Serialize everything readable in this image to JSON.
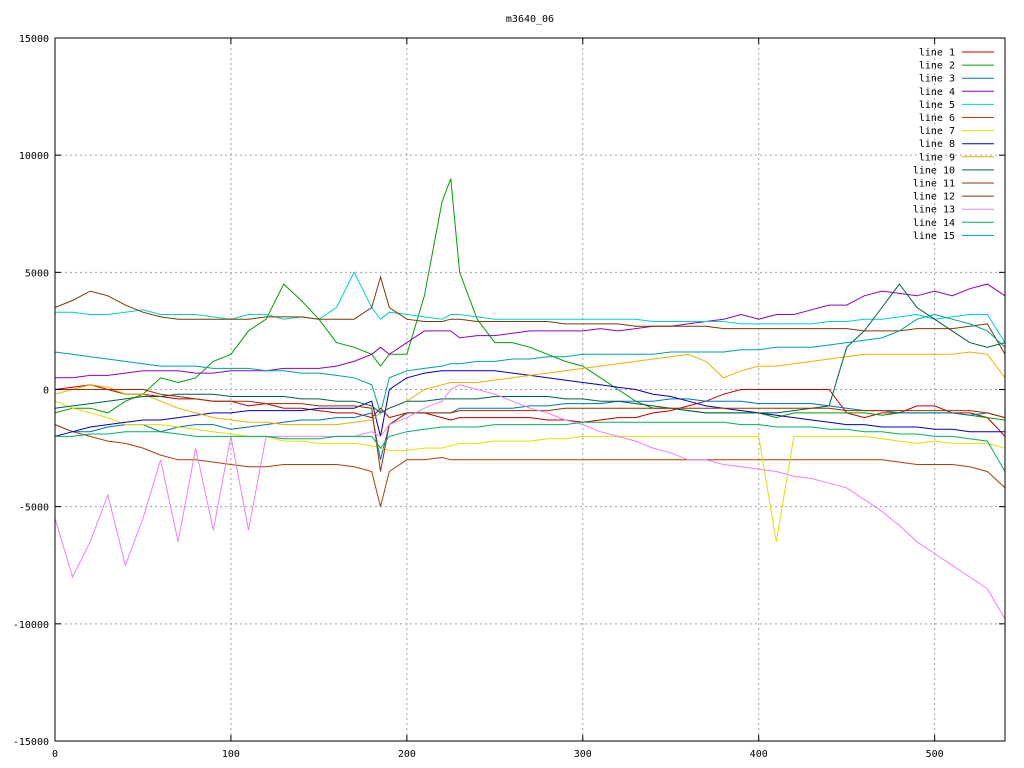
{
  "chart_data": {
    "type": "line",
    "title": "m3640_06",
    "xlabel": "",
    "ylabel": "",
    "xlim": [
      0,
      540
    ],
    "ylim": [
      -15000,
      15000
    ],
    "x_ticks": [
      0,
      100,
      200,
      300,
      400,
      500
    ],
    "y_ticks": [
      -15000,
      -10000,
      -5000,
      0,
      5000,
      10000,
      15000
    ],
    "grid": true,
    "legend_position": "top-right",
    "x": [
      0,
      10,
      20,
      30,
      40,
      50,
      60,
      70,
      80,
      90,
      100,
      110,
      120,
      130,
      140,
      150,
      160,
      170,
      180,
      185,
      190,
      200,
      210,
      220,
      225,
      230,
      240,
      250,
      260,
      270,
      280,
      290,
      300,
      310,
      320,
      330,
      340,
      350,
      360,
      370,
      380,
      390,
      400,
      410,
      420,
      430,
      440,
      450,
      460,
      470,
      480,
      490,
      500,
      510,
      520,
      530,
      540
    ],
    "series": [
      {
        "name": "line 1",
        "color": "#c00000",
        "values": [
          0,
          100,
          200,
          0,
          -200,
          -200,
          -300,
          -400,
          -400,
          -500,
          -500,
          -700,
          -600,
          -800,
          -800,
          -900,
          -1000,
          -1000,
          -1200,
          -800,
          -1200,
          -1000,
          -1000,
          -1200,
          -1300,
          -1200,
          -1200,
          -1200,
          -1200,
          -1200,
          -1300,
          -1300,
          -1400,
          -1300,
          -1200,
          -1200,
          -1000,
          -900,
          -700,
          -500,
          -200,
          0,
          0,
          0,
          0,
          0,
          0,
          -1000,
          -1200,
          -1000,
          -1000,
          -700,
          -700,
          -1000,
          -1000,
          -1200,
          -2000
        ]
      },
      {
        "name": "line 2",
        "color": "#00a000",
        "values": [
          -1000,
          -800,
          -800,
          -1000,
          -500,
          -200,
          500,
          300,
          500,
          1200,
          1500,
          2500,
          3000,
          4500,
          3800,
          3000,
          2000,
          1800,
          1500,
          1000,
          1500,
          1500,
          4000,
          8000,
          9000,
          5000,
          3000,
          2000,
          2000,
          1800,
          1500,
          1200,
          1000,
          500,
          0,
          -500,
          -800,
          -800,
          -900,
          -1000,
          -1000,
          -1000,
          -1000,
          -1200,
          -1000,
          -1000,
          -1000,
          -1000,
          -1000,
          -1100,
          -1000,
          -1000,
          -1000,
          -1000,
          -1100,
          -1200,
          -1300
        ]
      },
      {
        "name": "line 3",
        "color": "#0070c0",
        "values": [
          -1500,
          -1800,
          -1800,
          -1600,
          -1500,
          -1500,
          -1800,
          -1600,
          -1500,
          -1500,
          -1700,
          -1600,
          -1500,
          -1400,
          -1300,
          -1300,
          -1200,
          -1200,
          -1000,
          -3000,
          -1500,
          -1000,
          -1000,
          -1000,
          -1000,
          -800,
          -800,
          -800,
          -800,
          -700,
          -700,
          -600,
          -600,
          -600,
          -500,
          -500,
          -500,
          -400,
          -400,
          -500,
          -500,
          -500,
          -600,
          -600,
          -600,
          -600,
          -700,
          -800,
          -900,
          -900,
          -1000,
          -1000,
          -1000,
          -1000,
          -1100,
          -1000,
          -1200
        ]
      },
      {
        "name": "line 4",
        "color": "#9000c0",
        "values": [
          500,
          500,
          600,
          600,
          700,
          800,
          800,
          800,
          700,
          700,
          800,
          800,
          800,
          900,
          900,
          900,
          1000,
          1200,
          1500,
          1800,
          1500,
          2000,
          2500,
          2500,
          2500,
          2200,
          2300,
          2300,
          2400,
          2500,
          2500,
          2500,
          2500,
          2600,
          2500,
          2600,
          2700,
          2700,
          2800,
          2900,
          3000,
          3200,
          3000,
          3200,
          3200,
          3400,
          3600,
          3600,
          4000,
          4200,
          4100,
          4000,
          4200,
          4000,
          4300,
          4500,
          4000
        ]
      },
      {
        "name": "line 5",
        "color": "#00d0d0",
        "values": [
          3300,
          3300,
          3200,
          3200,
          3300,
          3400,
          3200,
          3200,
          3200,
          3100,
          3000,
          3200,
          3200,
          3000,
          3100,
          3000,
          3500,
          5000,
          3500,
          3000,
          3300,
          3200,
          3100,
          3000,
          3200,
          3200,
          3100,
          3000,
          3000,
          3000,
          3000,
          3000,
          3000,
          3000,
          3000,
          3000,
          2900,
          2900,
          2900,
          2900,
          2900,
          2800,
          2800,
          2800,
          2800,
          2800,
          2900,
          2900,
          3000,
          3000,
          3100,
          3200,
          3000,
          3100,
          3200,
          3200,
          2000
        ]
      },
      {
        "name": "line 6",
        "color": "#b04000",
        "values": [
          -1500,
          -1800,
          -2000,
          -2200,
          -2300,
          -2500,
          -2800,
          -3000,
          -3000,
          -3100,
          -3200,
          -3300,
          -3300,
          -3200,
          -3200,
          -3200,
          -3200,
          -3300,
          -3500,
          -5000,
          -3500,
          -3000,
          -3000,
          -2900,
          -3000,
          -3000,
          -3000,
          -3000,
          -3000,
          -3000,
          -3000,
          -3000,
          -3000,
          -3000,
          -3000,
          -3000,
          -3000,
          -3000,
          -3000,
          -3000,
          -3000,
          -3000,
          -3000,
          -3000,
          -3000,
          -3000,
          -3000,
          -3000,
          -3000,
          -3000,
          -3100,
          -3200,
          -3200,
          -3200,
          -3300,
          -3500,
          -4200
        ]
      },
      {
        "name": "line 7",
        "color": "#e0e000",
        "values": [
          -500,
          -800,
          -1000,
          -1200,
          -1500,
          -1500,
          -1500,
          -1600,
          -1700,
          -1800,
          -1900,
          -2000,
          -2000,
          -2200,
          -2200,
          -2300,
          -2300,
          -2300,
          -2400,
          -2500,
          -2600,
          -2600,
          -2500,
          -2500,
          -2400,
          -2300,
          -2300,
          -2200,
          -2200,
          -2200,
          -2100,
          -2100,
          -2000,
          -2000,
          -2000,
          -2000,
          -2000,
          -2000,
          -2000,
          -2000,
          -2000,
          -2000,
          -2000,
          -6500,
          -2000,
          -2000,
          -2000,
          -2000,
          -2000,
          -2100,
          -2200,
          -2300,
          -2200,
          -2300,
          -2300,
          -2300,
          -2500
        ]
      },
      {
        "name": "line 8",
        "color": "#0000c0",
        "values": [
          -2000,
          -1800,
          -1600,
          -1500,
          -1400,
          -1300,
          -1300,
          -1200,
          -1100,
          -1000,
          -1000,
          -900,
          -900,
          -900,
          -900,
          -800,
          -800,
          -800,
          -500,
          -2000,
          0,
          500,
          700,
          800,
          800,
          800,
          800,
          800,
          700,
          600,
          500,
          400,
          300,
          200,
          100,
          0,
          -200,
          -300,
          -500,
          -700,
          -800,
          -900,
          -1000,
          -1100,
          -1200,
          -1300,
          -1400,
          -1500,
          -1500,
          -1600,
          -1600,
          -1600,
          -1700,
          -1700,
          -1800,
          -1800,
          -1800
        ]
      },
      {
        "name": "line 9",
        "color": "#f0b000",
        "values": [
          -200,
          0,
          200,
          100,
          -200,
          -200,
          -500,
          -800,
          -1000,
          -1200,
          -1300,
          -1400,
          -1400,
          -1500,
          -1500,
          -1500,
          -1500,
          -1400,
          -1300,
          -1000,
          -800,
          -500,
          0,
          200,
          300,
          300,
          300,
          400,
          500,
          600,
          700,
          800,
          900,
          1000,
          1100,
          1200,
          1300,
          1400,
          1500,
          1200,
          500,
          800,
          1000,
          1000,
          1100,
          1200,
          1300,
          1400,
          1500,
          1500,
          1500,
          1500,
          1500,
          1500,
          1600,
          1500,
          500
        ]
      },
      {
        "name": "line 10",
        "color": "#006040",
        "values": [
          -800,
          -700,
          -600,
          -500,
          -400,
          -300,
          -300,
          -200,
          -200,
          -200,
          -300,
          -300,
          -300,
          -300,
          -400,
          -400,
          -500,
          -500,
          -700,
          -1000,
          -800,
          -500,
          -500,
          -400,
          -400,
          -400,
          -400,
          -300,
          -300,
          -300,
          -300,
          -400,
          -400,
          -500,
          -500,
          -600,
          -700,
          -800,
          -900,
          -1000,
          -1000,
          -1000,
          -1000,
          -1000,
          -900,
          -800,
          -700,
          1800,
          2500,
          3500,
          4500,
          3500,
          3000,
          2500,
          2000,
          1800,
          2000
        ]
      },
      {
        "name": "line 11",
        "color": "#9a3000",
        "values": [
          0,
          0,
          0,
          0,
          0,
          0,
          -200,
          -300,
          -400,
          -500,
          -500,
          -500,
          -600,
          -600,
          -600,
          -700,
          -700,
          -700,
          -800,
          -3500,
          -1500,
          -1000,
          -1000,
          -1000,
          -1000,
          -900,
          -900,
          -900,
          -900,
          -900,
          -900,
          -800,
          -800,
          -800,
          -800,
          -800,
          -800,
          -800,
          -800,
          -800,
          -800,
          -800,
          -800,
          -800,
          -800,
          -800,
          -800,
          -900,
          -900,
          -900,
          -900,
          -900,
          -900,
          -900,
          -900,
          -1000,
          -1200
        ]
      },
      {
        "name": "line 12",
        "color": "#7a3a00",
        "values": [
          3500,
          3800,
          4200,
          4000,
          3600,
          3300,
          3100,
          3000,
          3000,
          3000,
          3000,
          3000,
          3100,
          3100,
          3100,
          3000,
          3000,
          3000,
          3500,
          4800,
          3500,
          3000,
          2900,
          2900,
          3000,
          3000,
          2900,
          2900,
          2900,
          2900,
          2900,
          2800,
          2800,
          2800,
          2800,
          2700,
          2700,
          2700,
          2700,
          2700,
          2600,
          2600,
          2600,
          2600,
          2600,
          2600,
          2600,
          2600,
          2500,
          2500,
          2500,
          2600,
          2600,
          2600,
          2700,
          2800,
          1500
        ]
      },
      {
        "name": "line 13",
        "color": "#f080f0",
        "values": [
          -5500,
          -8000,
          -6500,
          -4500,
          -7500,
          -5500,
          -3000,
          -6500,
          -2500,
          -6000,
          -2000,
          -6000,
          -2000,
          -2000,
          -2000,
          -2000,
          -2000,
          -2000,
          -1800,
          -2000,
          -1500,
          -1200,
          -800,
          -500,
          0,
          200,
          0,
          -200,
          -500,
          -800,
          -1000,
          -1300,
          -1500,
          -1800,
          -2000,
          -2200,
          -2500,
          -2700,
          -3000,
          -3000,
          -3200,
          -3300,
          -3400,
          -3500,
          -3700,
          -3800,
          -4000,
          -4200,
          -4700,
          -5200,
          -5800,
          -6500,
          -7000,
          -7500,
          -8000,
          -8500,
          -9800
        ]
      },
      {
        "name": "line 14",
        "color": "#00b060",
        "values": [
          -2000,
          -2000,
          -1900,
          -1900,
          -1800,
          -1800,
          -1800,
          -1900,
          -2000,
          -2000,
          -2000,
          -2000,
          -2000,
          -2100,
          -2100,
          -2100,
          -2000,
          -2000,
          -2000,
          -2500,
          -2000,
          -1800,
          -1700,
          -1600,
          -1600,
          -1600,
          -1600,
          -1500,
          -1500,
          -1500,
          -1500,
          -1500,
          -1400,
          -1400,
          -1400,
          -1400,
          -1400,
          -1400,
          -1400,
          -1400,
          -1400,
          -1500,
          -1500,
          -1600,
          -1600,
          -1600,
          -1700,
          -1700,
          -1800,
          -1800,
          -1900,
          -1900,
          -2000,
          -2000,
          -2100,
          -2200,
          -3500
        ]
      },
      {
        "name": "line 15",
        "color": "#00a0a0",
        "values": [
          1600,
          1500,
          1400,
          1300,
          1200,
          1100,
          1000,
          1000,
          1000,
          900,
          900,
          900,
          800,
          800,
          700,
          700,
          600,
          500,
          200,
          -1000,
          500,
          800,
          900,
          1000,
          1100,
          1100,
          1200,
          1200,
          1300,
          1300,
          1400,
          1400,
          1500,
          1500,
          1500,
          1500,
          1500,
          1600,
          1600,
          1600,
          1600,
          1700,
          1700,
          1800,
          1800,
          1800,
          1900,
          2000,
          2100,
          2200,
          2500,
          3000,
          3200,
          3000,
          2800,
          2500,
          1800
        ]
      }
    ]
  }
}
